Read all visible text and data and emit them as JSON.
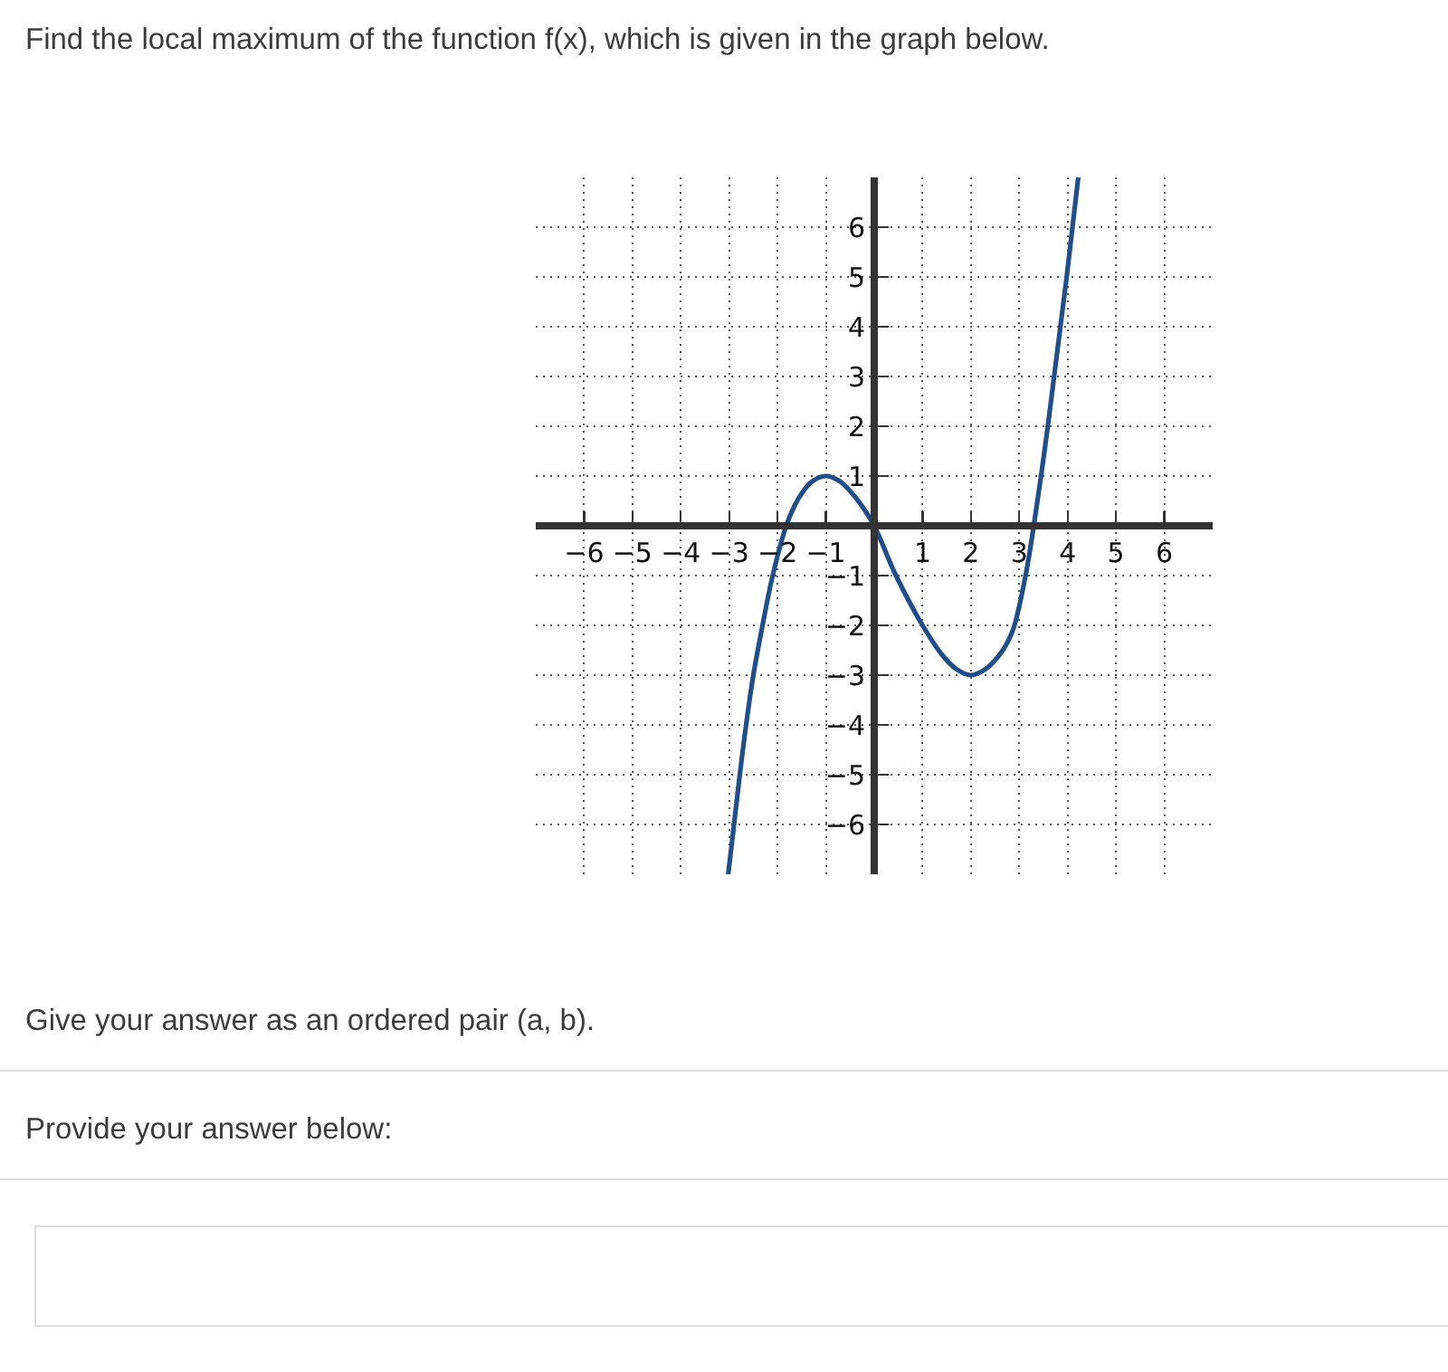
{
  "chart_data": {
    "type": "line",
    "title": "Find the local maximum of the function f(x), which is given in the graph below.",
    "annotations": [
      "Give your answer as an ordered pair (a, b).",
      "Provide your answer below:"
    ],
    "x": [
      -3.02,
      -2.9,
      -2.78,
      -2.65,
      -2.5,
      -2.31,
      -2.1,
      -1.82,
      -1.65,
      -1.5,
      -1.3,
      -1,
      -0.72,
      -0.5,
      -0.27,
      0,
      0.45,
      1,
      1.41,
      1.7,
      2,
      2.3,
      2.6,
      2.8,
      2.9,
      3.13,
      3.3,
      3.45,
      3.59,
      3.72,
      3.85,
      3.98,
      4.1,
      4.22
    ],
    "values": [
      -7,
      -6,
      -5,
      -4,
      -3,
      -2,
      -1,
      0,
      0.4,
      0.65,
      0.88,
      1,
      0.9,
      0.7,
      0.42,
      0,
      -1,
      -2,
      -2.6,
      -2.88,
      -3,
      -2.88,
      -2.58,
      -2.25,
      -2,
      -1,
      0,
      1,
      2,
      3,
      4,
      5,
      6,
      7
    ],
    "color": "#1f4e8c",
    "xlim": [
      -7,
      7
    ],
    "ylim": [
      -7,
      7
    ],
    "xticks": [
      -6,
      -5,
      -4,
      -3,
      -2,
      -1,
      1,
      2,
      3,
      4,
      5,
      6
    ],
    "yticks": [
      -6,
      -5,
      -4,
      -3,
      -2,
      -1,
      1,
      2,
      3,
      4,
      5,
      6
    ],
    "grid": true
  }
}
